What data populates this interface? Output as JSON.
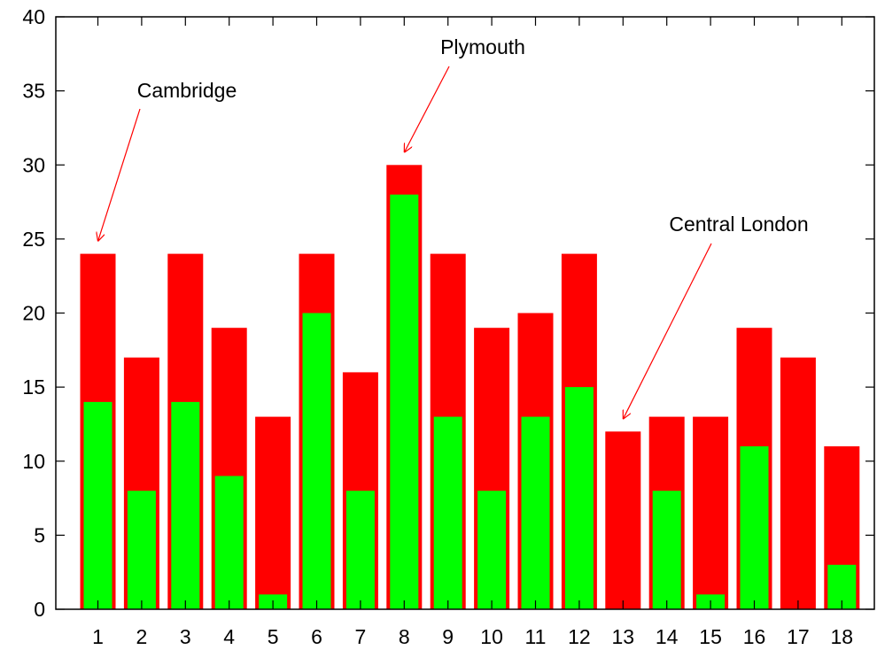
{
  "chart_data": {
    "type": "bar",
    "categories": [
      "1",
      "2",
      "3",
      "4",
      "5",
      "6",
      "7",
      "8",
      "9",
      "10",
      "11",
      "12",
      "13",
      "14",
      "15",
      "16",
      "17",
      "18"
    ],
    "series": [
      {
        "color": "#ff0000",
        "values": [
          24,
          17,
          24,
          19,
          13,
          24,
          16,
          30,
          24,
          19,
          20,
          24,
          12,
          13,
          13,
          19,
          17,
          11
        ]
      },
      {
        "color": "#00ff00",
        "values": [
          14,
          8,
          14,
          9,
          1,
          20,
          8,
          28,
          13,
          8,
          13,
          15,
          0,
          8,
          1,
          11,
          0,
          3
        ]
      }
    ],
    "ylim": [
      0,
      40
    ],
    "yticks": [
      0,
      5,
      10,
      15,
      20,
      25,
      30,
      35,
      40
    ],
    "grid": false,
    "annotations": [
      {
        "text": "Cambridge",
        "category": "1",
        "value": 24,
        "arrow_color": "#ff0000"
      },
      {
        "text": "Plymouth",
        "category": "8",
        "value": 30,
        "arrow_color": "#ff0000"
      },
      {
        "text": "Central London",
        "category": "13",
        "value": 12,
        "arrow_color": "#ff0000"
      }
    ]
  }
}
